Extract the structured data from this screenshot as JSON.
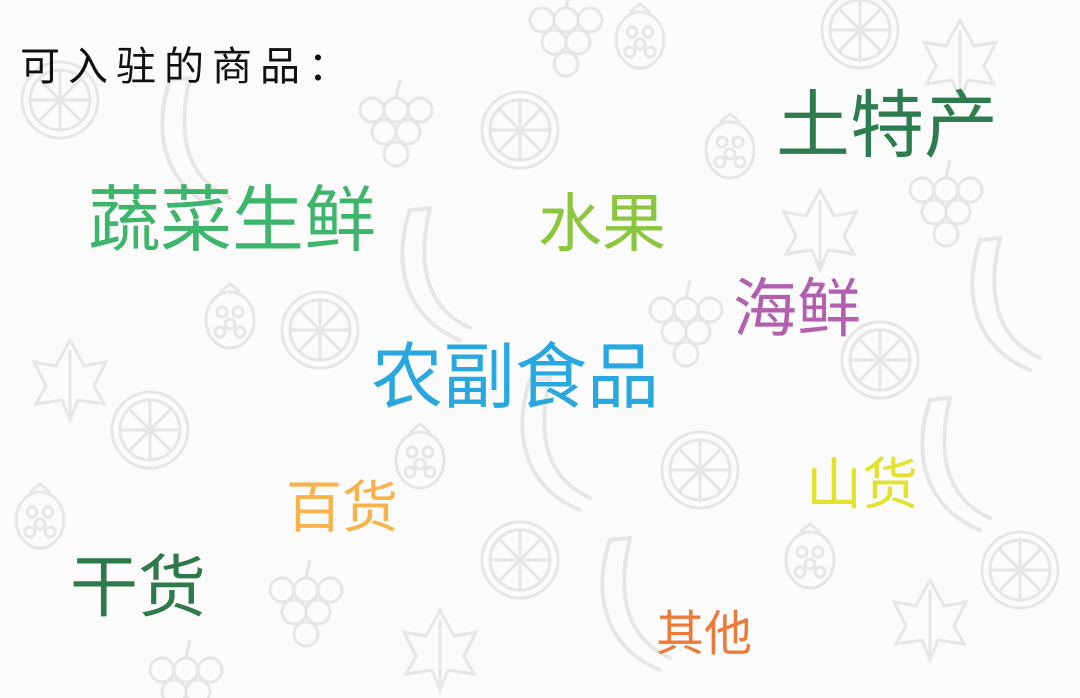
{
  "heading": "可入驻的商品：",
  "categories": [
    {
      "id": "techan",
      "label": "土特产",
      "color": "#2e7d4f"
    },
    {
      "id": "shucai",
      "label": "蔬菜生鲜",
      "color": "#3db56a"
    },
    {
      "id": "shuiguo",
      "label": "水果",
      "color": "#8cc63f"
    },
    {
      "id": "haixian",
      "label": "海鲜",
      "color": "#b25fb0"
    },
    {
      "id": "nongfu",
      "label": "农副食品",
      "color": "#29a8e0"
    },
    {
      "id": "baihuo",
      "label": "百货",
      "color": "#f7b34a"
    },
    {
      "id": "shanhuo",
      "label": "山货",
      "color": "#e3e22c"
    },
    {
      "id": "ganhuo",
      "label": "干货",
      "color": "#2f7a4a"
    },
    {
      "id": "qita",
      "label": "其他",
      "color": "#ee7a3a"
    }
  ],
  "background": {
    "color": "#fbfbfb",
    "motif": "fruit-line-art",
    "icons": [
      "lemon-slice-icon",
      "banana-icon",
      "grapes-icon",
      "raspberry-icon",
      "leaf-icon",
      "apple-icon"
    ]
  }
}
